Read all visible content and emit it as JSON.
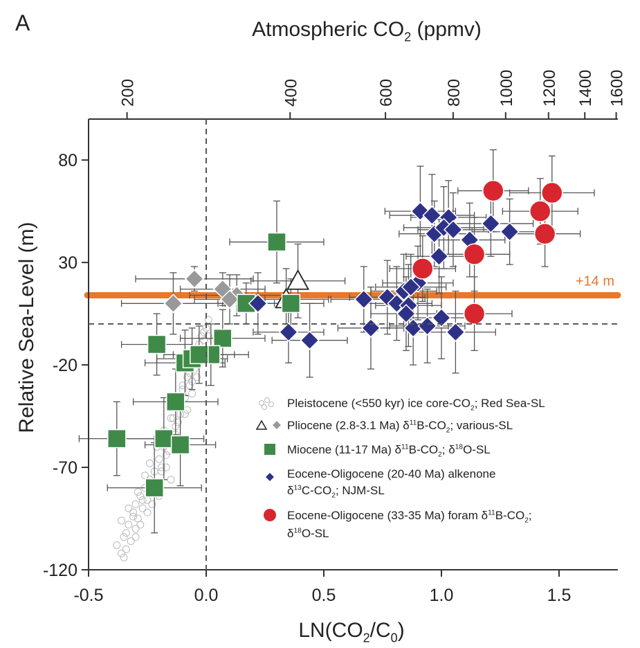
{
  "chart_data": {
    "type": "scatter",
    "panel_label": "A",
    "top_axis_title": "Atmospheric CO2 (ppmv)",
    "xlabel": "LN(CO2/C0)",
    "ylabel": "Relative Sea-Level (m)",
    "xlim": [
      -0.5,
      1.75
    ],
    "ylim": [
      -120,
      100
    ],
    "x_ticks": [
      -0.5,
      0.0,
      0.5,
      1.0,
      1.5
    ],
    "x_tick_labels": [
      "-0.5",
      "0.0",
      "0.5",
      "1.0",
      "1.5"
    ],
    "y_ticks": [
      -120,
      -70,
      -20,
      30,
      80
    ],
    "y_tick_labels": [
      "-120",
      "-70",
      "-20",
      "30",
      "80"
    ],
    "top_ticks": [
      200,
      400,
      600,
      800,
      1000,
      1200,
      1400,
      1600
    ],
    "top_tick_labels": [
      "200",
      "400",
      "600",
      "800",
      "1000",
      "1200",
      "1400",
      "1600"
    ],
    "reference_line": {
      "y": 14,
      "label": "+14 m",
      "color": "#e8782a"
    },
    "zero_lines": {
      "x": 0,
      "y": 0
    },
    "legend_placement": "bottom-right",
    "series": [
      {
        "name": "Pleistocene (<550 kyr) ice core-CO2; Red Sea-SL",
        "marker": "circle-open",
        "color": "#bbbbbb",
        "x": [
          -0.38,
          -0.36,
          -0.35,
          -0.34,
          -0.33,
          -0.32,
          -0.31,
          -0.3,
          -0.3,
          -0.29,
          -0.28,
          -0.27,
          -0.26,
          -0.25,
          -0.24,
          -0.23,
          -0.22,
          -0.21,
          -0.2,
          -0.19,
          -0.18,
          -0.17,
          -0.16,
          -0.15,
          -0.14,
          -0.13,
          -0.12,
          -0.11,
          -0.1,
          -0.09,
          -0.08,
          -0.07,
          -0.06,
          -0.05,
          -0.04,
          -0.03,
          -0.02,
          -0.01,
          0.0,
          0.01,
          -0.36,
          -0.33,
          -0.29,
          -0.26,
          -0.24,
          -0.21,
          -0.18,
          -0.15,
          -0.12,
          -0.1,
          -0.07,
          -0.05,
          -0.03,
          -0.01,
          -0.34,
          -0.31,
          -0.27,
          -0.22,
          -0.19,
          -0.16,
          -0.13,
          -0.09,
          -0.06,
          -0.02,
          -0.35,
          -0.3,
          -0.25,
          -0.2,
          -0.15,
          -0.11,
          -0.08,
          -0.04,
          0.01,
          -0.28,
          -0.23,
          -0.17,
          -0.12,
          -0.06,
          -0.02
        ],
        "y": [
          -108,
          -112,
          -104,
          -110,
          -98,
          -106,
          -92,
          -100,
          -88,
          -95,
          -84,
          -90,
          -80,
          -86,
          -76,
          -82,
          -72,
          -78,
          -66,
          -72,
          -60,
          -64,
          -54,
          -58,
          -46,
          -50,
          -40,
          -44,
          -32,
          -36,
          -26,
          -30,
          -20,
          -22,
          -12,
          -16,
          -6,
          -8,
          -2,
          2,
          -96,
          -90,
          -82,
          -74,
          -68,
          -60,
          -52,
          -46,
          -38,
          -30,
          -24,
          -16,
          -10,
          -4,
          -102,
          -94,
          -86,
          -78,
          -70,
          -62,
          -54,
          -44,
          -34,
          -14,
          -114,
          -104,
          -92,
          -84,
          -76,
          -56,
          -42,
          -26,
          -6,
          -98,
          -88,
          -70,
          -48,
          -28,
          -18
        ]
      },
      {
        "name": "Pliocene (2.8-3.1 Ma) δ11B-CO2; various-SL",
        "marker": "diamond",
        "color": "#999999",
        "open_triangle_color": "#ffffff",
        "x": [
          -0.14,
          -0.05,
          0.07,
          0.13,
          0.1
        ],
        "y": [
          10,
          22,
          17,
          14,
          12
        ],
        "x_err": [
          0.22,
          0.25,
          0.18,
          0.2,
          0.15
        ],
        "y_err": [
          15,
          6,
          8,
          10,
          12
        ],
        "triangle_x": [
          0.39,
          0.34
        ],
        "triangle_y": [
          21,
          12
        ],
        "triangle_x_err": [
          0.2,
          0.18
        ],
        "triangle_y_err": [
          18,
          15
        ]
      },
      {
        "name": "Miocene (11-17 Ma) δ11B-CO2; δ18O-SL",
        "marker": "square",
        "color": "#3f8a48",
        "x": [
          0.3,
          -0.21,
          0.07,
          0.02,
          -0.09,
          -0.06,
          -0.03,
          -0.13,
          -0.38,
          -0.18,
          -0.11,
          -0.22,
          0.17,
          0.36
        ],
        "y": [
          40,
          -10,
          -7,
          -15,
          -19,
          -17,
          -15,
          -38,
          -56,
          -56,
          -59,
          -80,
          10,
          10
        ],
        "x_err": [
          0.2,
          0.15,
          0.18,
          0.16,
          0.17,
          0.15,
          0.15,
          0.18,
          0.16,
          0.17,
          0.15,
          0.2,
          0.12,
          0.14
        ],
        "y_err": [
          20,
          15,
          14,
          15,
          16,
          15,
          14,
          16,
          18,
          20,
          20,
          22,
          10,
          12
        ]
      },
      {
        "name": "Eocene-Oligocene (20-40 Ma) alkenone δ13C-CO2; NJM-SL",
        "marker": "diamond",
        "color": "#2e3287",
        "x": [
          0.91,
          0.96,
          1.03,
          0.97,
          1.01,
          1.05,
          1.21,
          1.29,
          1.12,
          0.99,
          0.9,
          0.84,
          0.87,
          0.67,
          0.77,
          0.81,
          0.86,
          0.85,
          0.7,
          0.88,
          0.94,
          1.0,
          1.06,
          0.22,
          0.35,
          0.44
        ],
        "y": [
          55,
          53,
          52,
          44,
          47,
          46,
          49,
          45,
          41,
          33,
          20,
          16,
          18,
          12,
          13,
          10,
          9,
          5,
          -2,
          -2,
          -1,
          3,
          -4,
          10,
          -4,
          -8
        ],
        "x_err": [
          0.15,
          0.18,
          0.16,
          0.15,
          0.17,
          0.15,
          0.18,
          0.16,
          0.15,
          0.14,
          0.15,
          0.14,
          0.15,
          0.14,
          0.16,
          0.15,
          0.14,
          0.15,
          0.14,
          0.15,
          0.16,
          0.15,
          0.17,
          0.15,
          0.15,
          0.16
        ],
        "y_err": [
          22,
          20,
          18,
          16,
          20,
          18,
          16,
          16,
          18,
          18,
          18,
          18,
          16,
          16,
          18,
          18,
          20,
          18,
          20,
          18,
          18,
          20,
          20,
          15,
          15,
          18
        ]
      },
      {
        "name": "Eocene-Oligocene (33-35 Ma) foram δ11B-CO2; δ18O-SL",
        "marker": "circle",
        "color": "#d8262e",
        "x": [
          1.22,
          1.47,
          1.42,
          1.44,
          0.92,
          1.14,
          1.14
        ],
        "y": [
          65,
          64,
          55,
          44,
          27,
          34,
          5
        ],
        "x_err": [
          0.15,
          0.18,
          0.16,
          0.15,
          0.14,
          0.15,
          0.16
        ],
        "y_err": [
          20,
          18,
          16,
          16,
          16,
          18,
          18
        ]
      }
    ]
  }
}
